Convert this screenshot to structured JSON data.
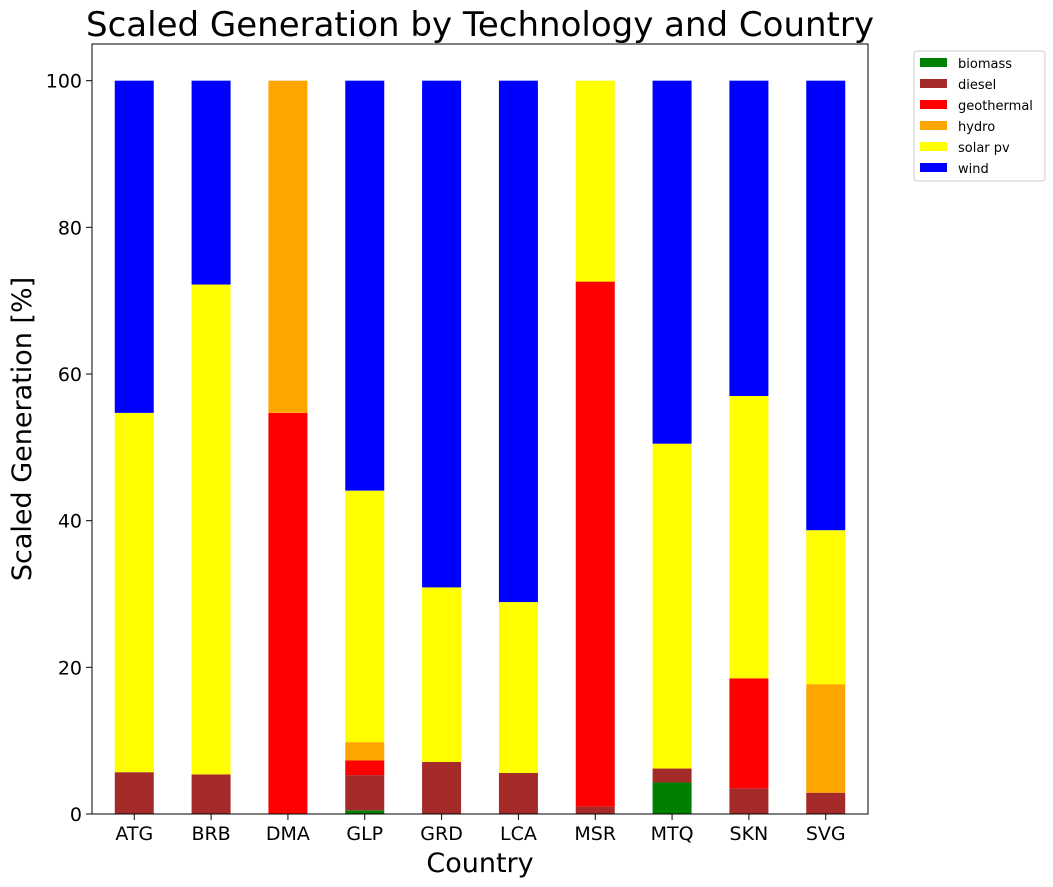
{
  "chart_data": {
    "type": "bar",
    "stacked": true,
    "title": "Scaled Generation by Technology and Country",
    "xlabel": "Country",
    "ylabel": "Scaled Generation [%]",
    "ylim": [
      0,
      105
    ],
    "yticks": [
      0,
      20,
      40,
      60,
      80,
      100
    ],
    "grid": false,
    "legend_position": "upper-right-outside",
    "categories": [
      "ATG",
      "BRB",
      "DMA",
      "GLP",
      "GRD",
      "LCA",
      "MSR",
      "MTQ",
      "SKN",
      "SVG"
    ],
    "series": [
      {
        "name": "biomass",
        "color": "#008000",
        "values": [
          0,
          0,
          0,
          0.5,
          0,
          0,
          0,
          4.3,
          0,
          0
        ]
      },
      {
        "name": "diesel",
        "color": "#a52a2a",
        "values": [
          5.7,
          5.4,
          0,
          4.8,
          7.1,
          5.6,
          1.0,
          1.9,
          3.5,
          2.9
        ]
      },
      {
        "name": "geothermal",
        "color": "#ff0000",
        "values": [
          0,
          0,
          54.7,
          2.0,
          0,
          0,
          71.6,
          0,
          15.0,
          0
        ]
      },
      {
        "name": "hydro",
        "color": "#ffa500",
        "values": [
          0,
          0,
          45.3,
          2.5,
          0,
          0,
          0,
          0,
          0,
          14.8
        ]
      },
      {
        "name": "solar pv",
        "color": "#ffff00",
        "values": [
          49.0,
          66.8,
          0,
          34.3,
          23.8,
          23.3,
          27.4,
          44.3,
          38.5,
          21.0
        ]
      },
      {
        "name": "wind",
        "color": "#0000ff",
        "values": [
          45.3,
          27.8,
          0,
          55.9,
          69.1,
          71.1,
          0,
          49.5,
          43.0,
          61.3
        ]
      }
    ]
  }
}
